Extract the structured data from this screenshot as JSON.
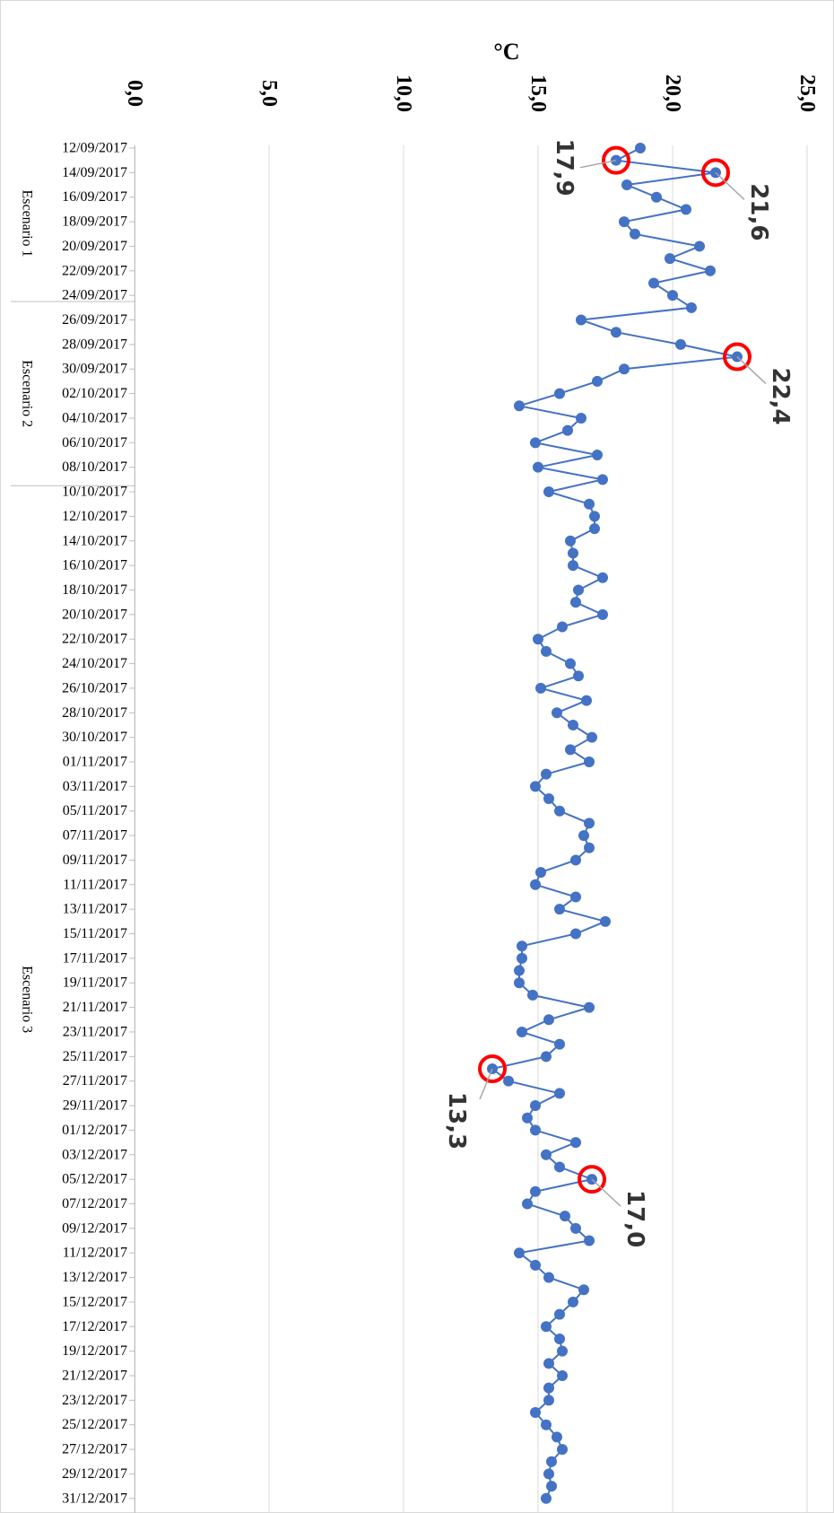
{
  "chart_data": {
    "type": "line",
    "orientation": "rotated-90-clockwise",
    "ylabel": "°C",
    "ylim": [
      0,
      25
    ],
    "yticks": [
      "0,0",
      "5,0",
      "10,0",
      "15,0",
      "20,0",
      "25,0"
    ],
    "grid": true,
    "series_color": "#4472c4",
    "marker_color": "#4472c4",
    "highlight_color": "#ff0000",
    "x_tick_labels": [
      "12/09/2017",
      "14/09/2017",
      "16/09/2017",
      "18/09/2017",
      "20/09/2017",
      "22/09/2017",
      "24/09/2017",
      "26/09/2017",
      "28/09/2017",
      "30/09/2017",
      "02/10/2017",
      "04/10/2017",
      "06/10/2017",
      "08/10/2017",
      "10/10/2017",
      "12/10/2017",
      "14/10/2017",
      "16/10/2017",
      "18/10/2017",
      "20/10/2017",
      "22/10/2017",
      "24/10/2017",
      "26/10/2017",
      "28/10/2017",
      "30/10/2017",
      "01/11/2017",
      "03/11/2017",
      "05/11/2017",
      "07/11/2017",
      "09/11/2017",
      "11/11/2017",
      "13/11/2017",
      "15/11/2017",
      "17/11/2017",
      "19/11/2017",
      "21/11/2017",
      "23/11/2017",
      "25/11/2017",
      "27/11/2017",
      "29/11/2017",
      "01/12/2017",
      "03/12/2017",
      "05/12/2017",
      "07/12/2017",
      "09/12/2017",
      "11/12/2017",
      "13/12/2017",
      "15/12/2017",
      "17/12/2017",
      "19/12/2017",
      "21/12/2017",
      "23/12/2017",
      "25/12/2017",
      "27/12/2017",
      "29/12/2017",
      "31/12/2017"
    ],
    "scenarios": [
      {
        "label": "Escenario 1",
        "start": "12/09/2017",
        "end": "24/09/2017"
      },
      {
        "label": "Escenario 2",
        "start": "25/09/2017",
        "end": "09/10/2017"
      },
      {
        "label": "Escenario 3",
        "start": "10/10/2017",
        "end": "31/12/2017"
      }
    ],
    "series": [
      {
        "x": [
          "12/09/2017",
          "13/09/2017",
          "14/09/2017",
          "15/09/2017",
          "16/09/2017",
          "17/09/2017",
          "18/09/2017",
          "19/09/2017",
          "20/09/2017",
          "21/09/2017",
          "22/09/2017",
          "23/09/2017",
          "24/09/2017",
          "25/09/2017",
          "26/09/2017",
          "27/09/2017",
          "28/09/2017",
          "29/09/2017",
          "30/09/2017",
          "01/10/2017",
          "02/10/2017",
          "03/10/2017",
          "04/10/2017",
          "05/10/2017",
          "06/10/2017",
          "07/10/2017",
          "08/10/2017",
          "09/10/2017",
          "10/10/2017",
          "11/10/2017",
          "12/10/2017",
          "13/10/2017",
          "14/10/2017",
          "15/10/2017",
          "16/10/2017",
          "17/10/2017",
          "18/10/2017",
          "19/10/2017",
          "20/10/2017",
          "21/10/2017",
          "22/10/2017",
          "23/10/2017",
          "24/10/2017",
          "25/10/2017",
          "26/10/2017",
          "27/10/2017",
          "28/10/2017",
          "29/10/2017",
          "30/10/2017",
          "31/10/2017",
          "01/11/2017",
          "02/11/2017",
          "03/11/2017",
          "04/11/2017",
          "05/11/2017",
          "06/11/2017",
          "07/11/2017",
          "08/11/2017",
          "09/11/2017",
          "10/11/2017",
          "11/11/2017",
          "12/11/2017",
          "13/11/2017",
          "14/11/2017",
          "15/11/2017",
          "16/11/2017",
          "17/11/2017",
          "18/11/2017",
          "19/11/2017",
          "20/11/2017",
          "21/11/2017",
          "22/11/2017",
          "23/11/2017",
          "24/11/2017",
          "25/11/2017",
          "26/11/2017",
          "27/11/2017",
          "28/11/2017",
          "29/11/2017",
          "30/11/2017",
          "01/12/2017",
          "02/12/2017",
          "03/12/2017",
          "04/12/2017",
          "05/12/2017",
          "06/12/2017",
          "07/12/2017",
          "08/12/2017",
          "09/12/2017",
          "10/12/2017",
          "11/12/2017",
          "12/12/2017",
          "13/12/2017",
          "14/12/2017",
          "15/12/2017",
          "16/12/2017",
          "17/12/2017",
          "18/12/2017",
          "19/12/2017",
          "20/12/2017",
          "21/12/2017",
          "22/12/2017",
          "23/12/2017",
          "24/12/2017",
          "25/12/2017",
          "26/12/2017",
          "27/12/2017",
          "28/12/2017",
          "29/12/2017",
          "30/12/2017",
          "31/12/2017"
        ],
        "values": [
          18.8,
          17.9,
          21.6,
          18.3,
          19.4,
          20.5,
          18.2,
          18.6,
          21.0,
          19.9,
          21.4,
          19.3,
          20.0,
          20.7,
          16.6,
          17.9,
          20.3,
          22.4,
          18.2,
          17.2,
          15.8,
          14.3,
          16.6,
          16.1,
          14.9,
          17.2,
          15.0,
          17.4,
          15.4,
          16.9,
          17.1,
          17.1,
          16.2,
          16.3,
          16.3,
          17.4,
          16.5,
          16.4,
          17.4,
          15.9,
          15.0,
          15.3,
          16.2,
          16.5,
          15.1,
          16.8,
          15.7,
          16.3,
          17.0,
          16.2,
          16.9,
          15.3,
          14.9,
          15.4,
          15.8,
          16.9,
          16.7,
          16.9,
          16.4,
          15.1,
          14.9,
          16.4,
          15.8,
          17.5,
          16.4,
          14.4,
          14.4,
          14.3,
          14.3,
          14.8,
          16.9,
          15.4,
          14.4,
          15.8,
          15.3,
          13.3,
          13.9,
          15.8,
          14.9,
          14.6,
          14.9,
          16.4,
          15.3,
          15.8,
          17.0,
          14.9,
          14.6,
          16.0,
          16.4,
          16.9,
          14.3,
          14.9,
          15.4,
          16.7,
          16.3,
          15.8,
          15.3,
          15.8,
          15.9,
          15.4,
          15.9,
          15.4,
          15.4,
          14.9,
          15.3,
          15.7,
          15.9,
          15.5,
          15.4,
          15.5,
          15.3
        ]
      }
    ],
    "annotations": [
      {
        "x": "13/09/2017",
        "value": 17.9,
        "label": "17,9"
      },
      {
        "x": "14/09/2017",
        "value": 21.6,
        "label": "21,6"
      },
      {
        "x": "29/09/2017",
        "value": 22.4,
        "label": "22,4"
      },
      {
        "x": "26/11/2017",
        "value": 13.3,
        "label": "13,3"
      },
      {
        "x": "05/12/2017",
        "value": 17.0,
        "label": "17,0"
      }
    ]
  }
}
